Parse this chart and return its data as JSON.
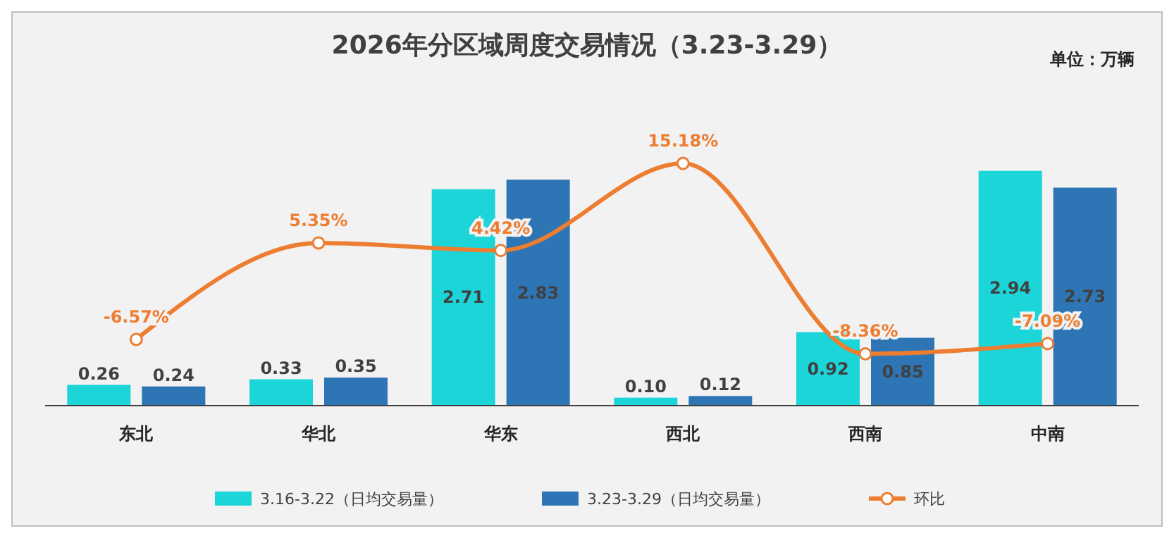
{
  "chart_data": {
    "type": "bar",
    "title": "2026年分区域周度交易情况（3.23-3.29）",
    "annotations": [
      "单位：万辆"
    ],
    "categories": [
      "东北",
      "华北",
      "华东",
      "西北",
      "西南",
      "中南"
    ],
    "series": [
      {
        "name": "3.16-3.22（日均交易量）",
        "color": "#1cd5d9",
        "values": [
          0.26,
          0.33,
          2.71,
          0.1,
          0.92,
          2.94
        ],
        "value_labels": [
          "0.26",
          "0.33",
          "2.71",
          "0.10",
          "0.92",
          "2.94"
        ]
      },
      {
        "name": "3.23-3.29（日均交易量）",
        "color": "#2e75b6",
        "values": [
          0.24,
          0.35,
          2.83,
          0.12,
          0.85,
          2.73
        ],
        "value_labels": [
          "0.24",
          "0.35",
          "2.83",
          "0.12",
          "0.85",
          "2.73"
        ]
      },
      {
        "name": "环比",
        "type": "line",
        "axis": "y2",
        "color": "#ed7d31",
        "values": [
          -6.57,
          5.35,
          4.42,
          15.18,
          -8.36,
          -7.09
        ],
        "value_labels": [
          "-6.57%",
          "5.35%",
          "4.42%",
          "15.18%",
          "-8.36%",
          "-7.09%"
        ]
      }
    ],
    "legend": "bottom",
    "marker": "circle",
    "tick_labels": "x"
  }
}
